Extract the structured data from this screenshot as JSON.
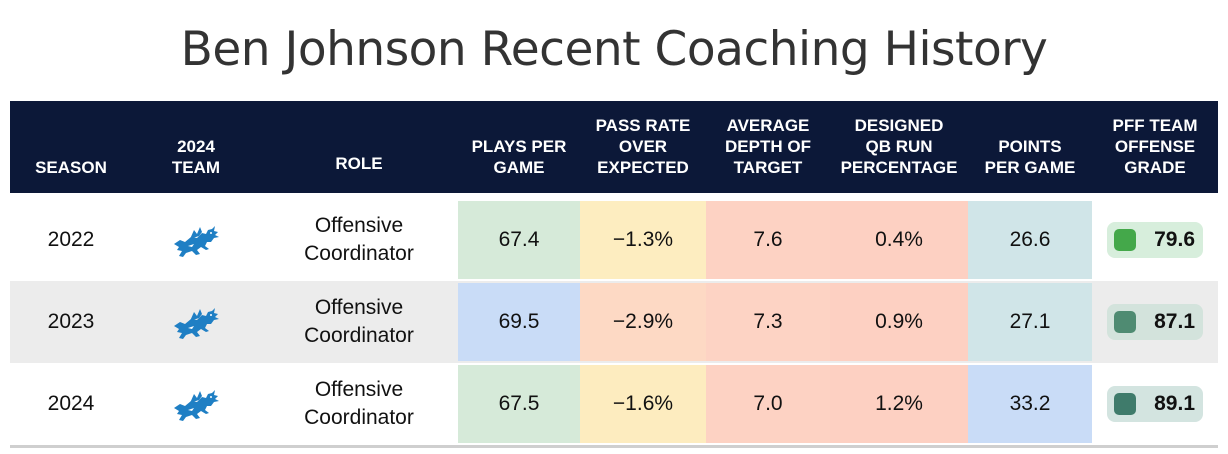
{
  "title": "Ben Johnson Recent Coaching History",
  "headers": {
    "season": "SEASON",
    "team": "2024\nTEAM",
    "role": "ROLE",
    "plays": "PLAYS PER\nGAME",
    "proe": "PASS RATE\nOVER\nEXPECTED",
    "adot": "AVERAGE\nDEPTH OF\nTARGET",
    "qbrun": "DESIGNED\nQB RUN\nPERCENTAGE",
    "ppg": "POINTS\nPER GAME",
    "grade": "PFF TEAM\nOFFENSE\nGRADE"
  },
  "team_icon": "lions-logo-icon",
  "rows": [
    {
      "season": "2022",
      "role": "Offensive\nCoordinator",
      "plays": "67.4",
      "proe": "−1.3%",
      "adot": "7.6",
      "qbrun": "0.4%",
      "ppg": "26.6",
      "grade": "79.6",
      "colors": {
        "plays": "#d6ead9",
        "proe": "#fdedc0",
        "adot": "#fdd2c3",
        "qbrun": "#fdd0c2",
        "ppg": "#d0e5e8",
        "grade_bg": "#d7eedc",
        "grade_sq": "#44a84a"
      }
    },
    {
      "season": "2023",
      "role": "Offensive\nCoordinator",
      "plays": "69.5",
      "proe": "−2.9%",
      "adot": "7.3",
      "qbrun": "0.9%",
      "ppg": "27.1",
      "grade": "87.1",
      "colors": {
        "plays": "#c9dcf7",
        "proe": "#fdd9c4",
        "adot": "#fdd3c4",
        "qbrun": "#fdd0c2",
        "ppg": "#d0e5e8",
        "grade_bg": "#d3e3dc",
        "grade_sq": "#4f8b72"
      }
    },
    {
      "season": "2024",
      "role": "Offensive\nCoordinator",
      "plays": "67.5",
      "proe": "−1.6%",
      "adot": "7.0",
      "qbrun": "1.2%",
      "ppg": "33.2",
      "grade": "89.1",
      "colors": {
        "plays": "#d6ead9",
        "proe": "#fdecbf",
        "adot": "#fdd2c3",
        "qbrun": "#fdd0c2",
        "ppg": "#c9dcf7",
        "grade_bg": "#d3e4e0",
        "grade_sq": "#3f7b6b"
      }
    }
  ]
}
